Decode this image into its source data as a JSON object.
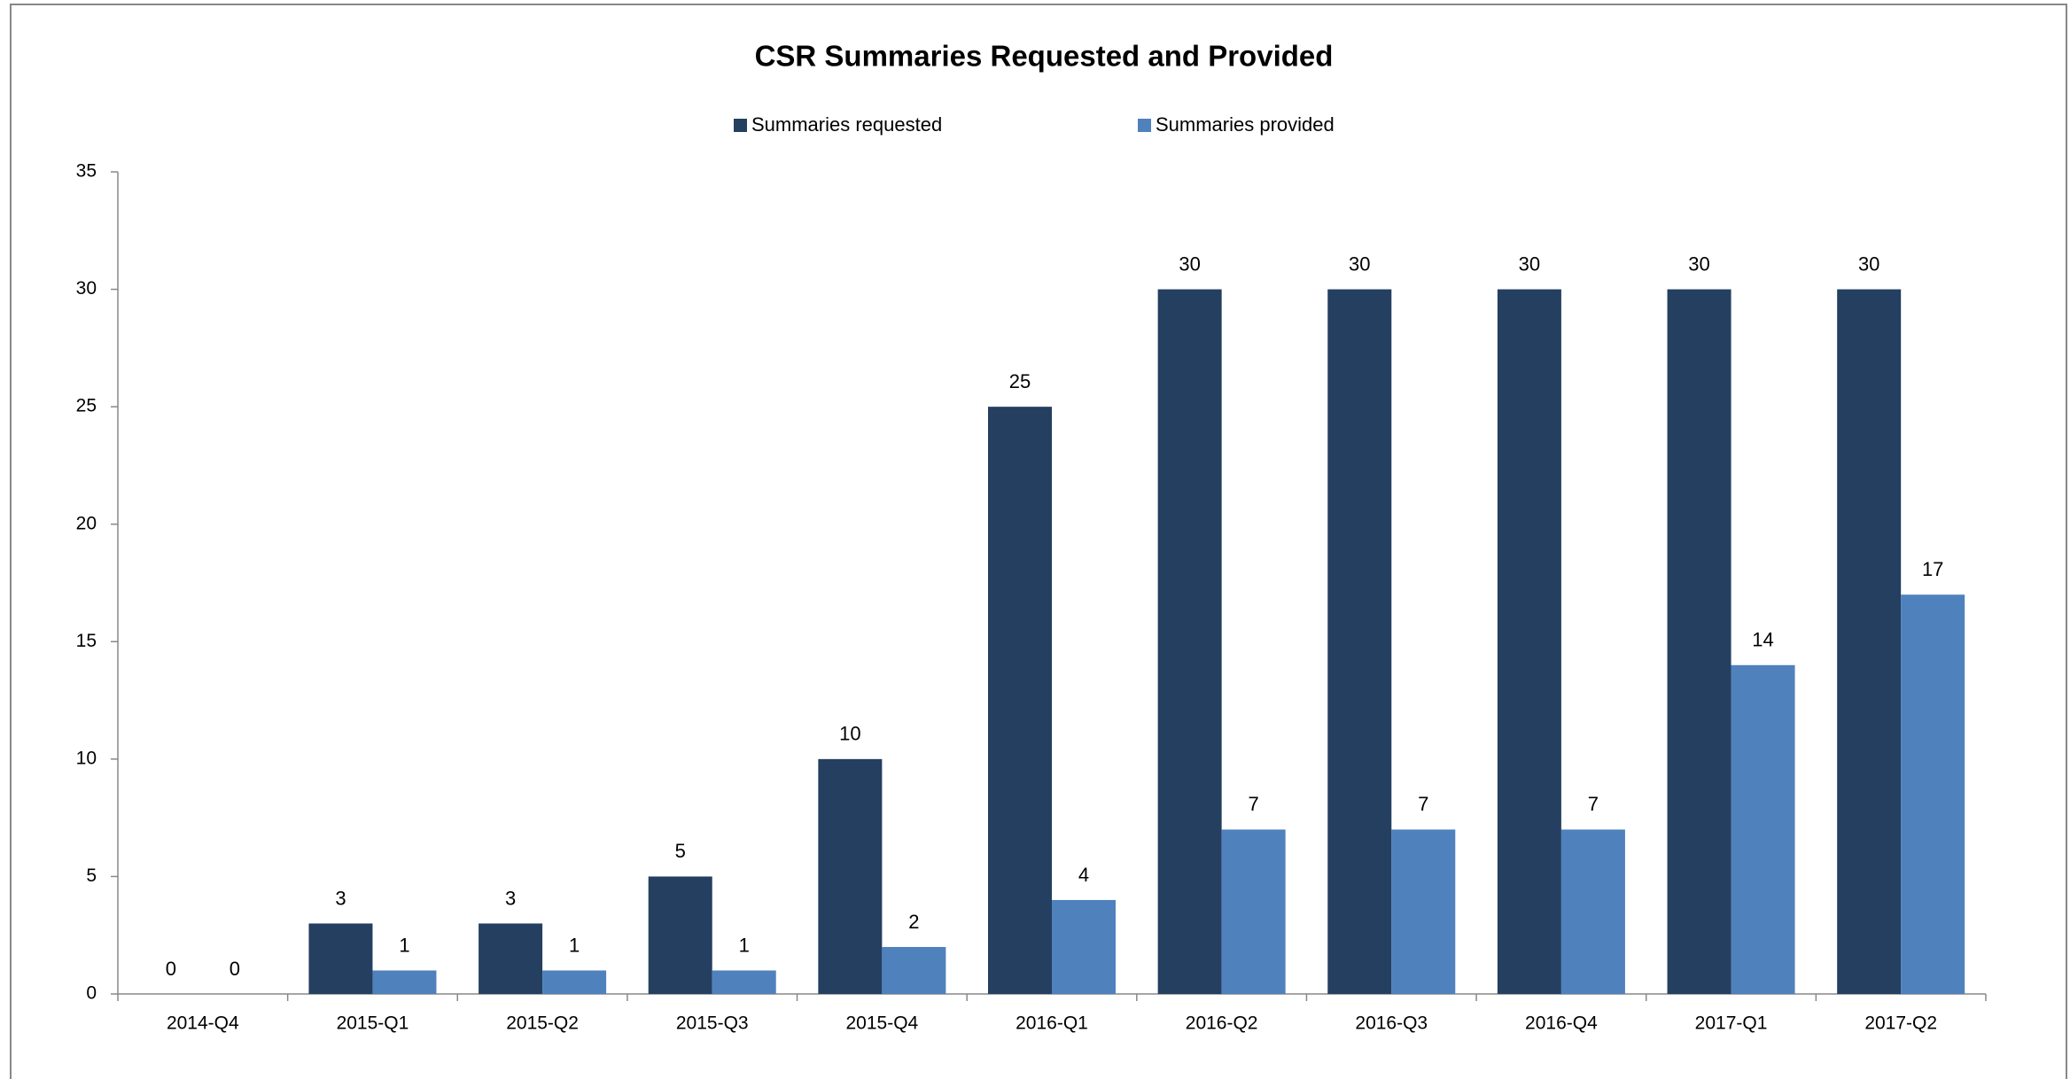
{
  "chart_data": {
    "type": "bar",
    "title": "CSR Summaries Requested and Provided",
    "categories": [
      "2014-Q4",
      "2015-Q1",
      "2015-Q2",
      "2015-Q3",
      "2015-Q4",
      "2016-Q1",
      "2016-Q2",
      "2016-Q3",
      "2016-Q4",
      "2017-Q1",
      "2017-Q2"
    ],
    "series": [
      {
        "name": "Summaries requested",
        "color": "#243f60",
        "values": [
          0,
          3,
          3,
          5,
          10,
          25,
          30,
          30,
          30,
          30,
          30
        ]
      },
      {
        "name": "Summaries provided",
        "color": "#4f81bd",
        "values": [
          0,
          1,
          1,
          1,
          2,
          4,
          7,
          7,
          7,
          14,
          17
        ]
      }
    ],
    "ylim": [
      0,
      35
    ],
    "yticks": [
      0,
      5,
      10,
      15,
      20,
      25,
      30,
      35
    ],
    "grid": false,
    "legend": "top"
  }
}
